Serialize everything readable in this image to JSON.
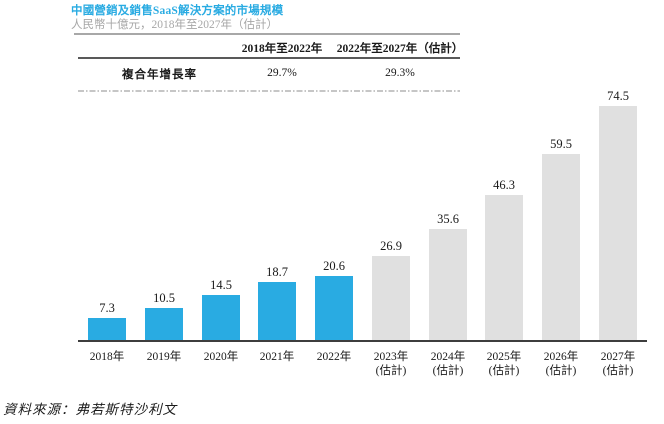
{
  "title": "中國營銷及銷售SaaS解決方案的市場規模",
  "subtitle": "人民幣十億元，2018年至2027年（估計）",
  "table": {
    "headers": [
      "2018年至2022年",
      "2022年至2027年（估計）"
    ],
    "row_label": "複合年增長率",
    "values": [
      "29.7%",
      "29.3%"
    ]
  },
  "source": "資料來源：弗若斯特沙利文",
  "colors": {
    "title_blue": "#29ABE2",
    "bar_blue": "#29ABE2",
    "bar_gray": "#E0E0E0",
    "subtitle_gray": "#A7A7A7"
  },
  "chart_data": {
    "type": "bar",
    "title": "中國營銷及銷售SaaS解決方案的市場規模",
    "unit_label": "人民幣十億元",
    "ylim": [
      0,
      80
    ],
    "grid": false,
    "data_labels": true,
    "legend": "none",
    "cagr": {
      "2018-2022": "29.7%",
      "2022-2027E": "29.3%"
    },
    "categories": [
      "2018年",
      "2019年",
      "2020年",
      "2021年",
      "2022年",
      "2023年（估計）",
      "2024年（估計）",
      "2025年（估計）",
      "2026年（估計）",
      "2027年（估計）"
    ],
    "values": [
      7.3,
      10.5,
      14.5,
      18.7,
      20.6,
      26.9,
      35.6,
      46.3,
      59.5,
      74.5
    ],
    "bars": [
      {
        "label": "2018年",
        "sublabel": "",
        "value": "7.3",
        "series": "historical"
      },
      {
        "label": "2019年",
        "sublabel": "",
        "value": "10.5",
        "series": "historical"
      },
      {
        "label": "2020年",
        "sublabel": "",
        "value": "14.5",
        "series": "historical"
      },
      {
        "label": "2021年",
        "sublabel": "",
        "value": "18.7",
        "series": "historical"
      },
      {
        "label": "2022年",
        "sublabel": "",
        "value": "20.6",
        "series": "historical"
      },
      {
        "label": "2023年",
        "sublabel": "(估計)",
        "value": "26.9",
        "series": "forecast"
      },
      {
        "label": "2024年",
        "sublabel": "(估計)",
        "value": "35.6",
        "series": "forecast"
      },
      {
        "label": "2025年",
        "sublabel": "(估計)",
        "value": "46.3",
        "series": "forecast"
      },
      {
        "label": "2026年",
        "sublabel": "(估計)",
        "value": "59.5",
        "series": "forecast"
      },
      {
        "label": "2027年",
        "sublabel": "(估計)",
        "value": "74.5",
        "series": "forecast"
      }
    ]
  }
}
